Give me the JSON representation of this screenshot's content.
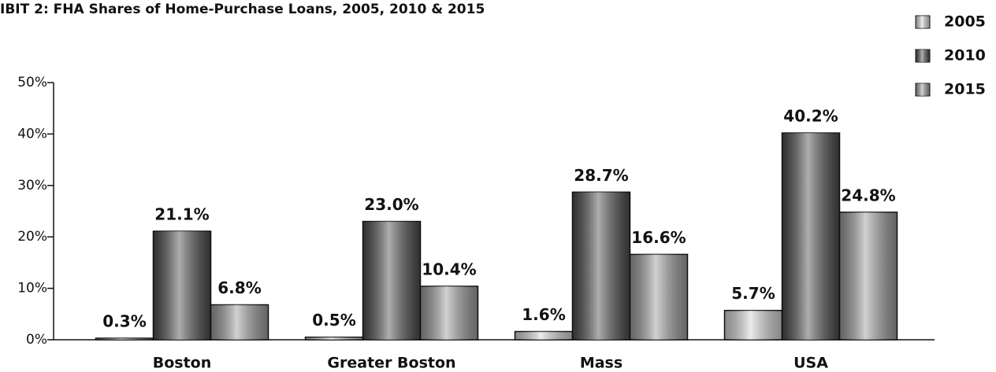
{
  "chart_data": {
    "type": "bar",
    "title": "IBIT 2: FHA Shares of Home-Purchase Loans, 2005, 2010 & 2015",
    "categories": [
      "Boston",
      "Greater Boston",
      "Mass",
      "USA"
    ],
    "series": [
      {
        "name": "2005",
        "color": "#d4d4d4",
        "values": [
          0.3,
          0.5,
          1.6,
          5.7
        ],
        "value_labels": [
          "0.3%",
          "0.5%",
          "1.6%",
          "5.7%"
        ]
      },
      {
        "name": "2010",
        "color": "#4a4a4a",
        "values": [
          21.1,
          23.0,
          28.7,
          40.2
        ],
        "value_labels": [
          "21.1%",
          "23.0%",
          "28.7%",
          "40.2%"
        ]
      },
      {
        "name": "2015",
        "color": "#9a9a9a",
        "values": [
          6.8,
          10.4,
          16.6,
          24.8
        ],
        "value_labels": [
          "6.8%",
          "10.4%",
          "16.6%",
          "24.8%"
        ]
      }
    ],
    "ylim": [
      0,
      50
    ],
    "yticks": [
      {
        "value": 0,
        "label": "0%"
      },
      {
        "value": 10,
        "label": "10%"
      },
      {
        "value": 20,
        "label": "20%"
      },
      {
        "value": 30,
        "label": "30%"
      },
      {
        "value": 40,
        "label": "40%"
      },
      {
        "value": 50,
        "label": "50%"
      }
    ],
    "legend": "top-right"
  }
}
